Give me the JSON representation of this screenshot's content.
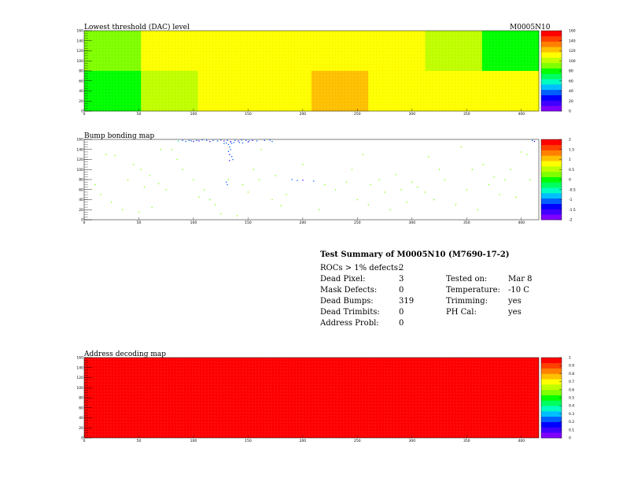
{
  "module_id": "M0005N10",
  "colors": {
    "palette": [
      "#8000ff",
      "#4000ff",
      "#0000ff",
      "#0060ff",
      "#00c0ff",
      "#00ffc0",
      "#00ff60",
      "#00ff00",
      "#80ff00",
      "#c0ff00",
      "#ffff00",
      "#ffc000",
      "#ff8000",
      "#ff4000",
      "#ff0000"
    ]
  },
  "chart_data": [
    {
      "type": "heatmap",
      "title": "Lowest threshold (DAC) level",
      "x_ticks": [
        "0",
        "50",
        "100",
        "150",
        "200",
        "250",
        "300",
        "350",
        "400"
      ],
      "y_ticks": [
        "0",
        "20",
        "40",
        "60",
        "80",
        "100",
        "120",
        "140",
        "160"
      ],
      "xlim": [
        0,
        416
      ],
      "ylim": [
        0,
        160
      ],
      "colorbar_ticks": [
        "0",
        "20",
        "40",
        "60",
        "80",
        "100",
        "120",
        "140",
        "160"
      ],
      "colorbar_range": [
        0,
        160
      ],
      "roc_grid": {
        "cols": 8,
        "rows": 2
      },
      "roc_values_top": [
        95,
        115,
        110,
        110,
        115,
        115,
        105,
        80
      ],
      "roc_values_bottom": [
        80,
        100,
        110,
        115,
        120,
        110,
        115,
        110
      ]
    },
    {
      "type": "scatter",
      "title": "Bump bonding map",
      "x_ticks": [
        "0",
        "50",
        "100",
        "150",
        "200",
        "250",
        "300",
        "350",
        "400"
      ],
      "y_ticks": [
        "0",
        "20",
        "40",
        "60",
        "80",
        "100",
        "120",
        "140",
        "160"
      ],
      "xlim": [
        0,
        416
      ],
      "ylim": [
        0,
        160
      ],
      "colorbar_ticks": [
        "2",
        "1.5",
        "1",
        "0.5",
        "0",
        "-0.5",
        "-1",
        "-1.5",
        "-2"
      ],
      "colorbar_range": [
        -2,
        2
      ],
      "dead_bump_count": 319,
      "points": [
        [
          96,
          158,
          -1
        ],
        [
          98,
          157,
          -1
        ],
        [
          100,
          156,
          -1.5
        ],
        [
          103,
          158,
          -1
        ],
        [
          105,
          157,
          -1.5
        ],
        [
          108,
          159,
          -1
        ],
        [
          112,
          158,
          -1
        ],
        [
          115,
          156,
          -1.5
        ],
        [
          118,
          158,
          -1
        ],
        [
          122,
          157,
          -1
        ],
        [
          125,
          159,
          -1
        ],
        [
          128,
          157,
          -1.5
        ],
        [
          131,
          158,
          -1
        ],
        [
          134,
          156,
          -1
        ],
        [
          138,
          158,
          -1
        ],
        [
          141,
          157,
          -1.5
        ],
        [
          144,
          159,
          -1
        ],
        [
          148,
          158,
          -1
        ],
        [
          151,
          157,
          -1
        ],
        [
          154,
          158,
          -1.5
        ],
        [
          86,
          157,
          -0.5
        ],
        [
          90,
          158,
          -1
        ],
        [
          93,
          156,
          -1
        ],
        [
          132,
          150,
          -1
        ],
        [
          133,
          145,
          -1
        ],
        [
          134,
          140,
          -1
        ],
        [
          132,
          136,
          -1
        ],
        [
          133,
          130,
          -1.5
        ],
        [
          135,
          126,
          -1
        ],
        [
          136,
          120,
          -1
        ],
        [
          133,
          118,
          -1.5
        ],
        [
          134,
          155,
          -2
        ],
        [
          135,
          152,
          -1
        ],
        [
          137,
          154,
          -1
        ],
        [
          130,
          153,
          -1
        ],
        [
          128,
          152,
          -1
        ],
        [
          142,
          154,
          -1
        ],
        [
          145,
          153,
          -1
        ],
        [
          150,
          155,
          -1.5
        ],
        [
          158,
          157,
          -1
        ],
        [
          165,
          158,
          -1
        ],
        [
          170,
          159,
          -1
        ],
        [
          172,
          156,
          -1
        ],
        [
          20,
          130,
          0.3
        ],
        [
          28,
          128,
          0.3
        ],
        [
          45,
          110,
          0.3
        ],
        [
          52,
          100,
          0.3
        ],
        [
          60,
          88,
          0.3
        ],
        [
          68,
          72,
          0.3
        ],
        [
          75,
          60,
          0.3
        ],
        [
          80,
          140,
          0.3
        ],
        [
          85,
          120,
          0.3
        ],
        [
          100,
          80,
          0.3
        ],
        [
          110,
          60,
          0.3
        ],
        [
          115,
          40,
          0.3
        ],
        [
          120,
          30,
          0.3
        ],
        [
          130,
          75,
          -1
        ],
        [
          131,
          70,
          -1
        ],
        [
          132,
          80,
          0.3
        ],
        [
          145,
          70,
          0.3
        ],
        [
          150,
          55,
          0.3
        ],
        [
          160,
          80,
          0.3
        ],
        [
          172,
          40,
          0.3
        ],
        [
          180,
          28,
          0.3
        ],
        [
          190,
          80,
          -1
        ],
        [
          195,
          78,
          -1
        ],
        [
          200,
          79,
          -1.5
        ],
        [
          210,
          77,
          -1
        ],
        [
          220,
          70,
          0.3
        ],
        [
          230,
          60,
          0.3
        ],
        [
          240,
          75,
          0.3
        ],
        [
          250,
          40,
          0.3
        ],
        [
          260,
          30,
          0.3
        ],
        [
          270,
          80,
          0.3
        ],
        [
          280,
          20,
          0.3
        ],
        [
          290,
          60,
          0.3
        ],
        [
          300,
          75,
          0.3
        ],
        [
          305,
          65,
          0.3
        ],
        [
          312,
          55,
          0.3
        ],
        [
          320,
          40,
          0.3
        ],
        [
          330,
          80,
          0.3
        ],
        [
          340,
          30,
          0.3
        ],
        [
          350,
          60,
          0.3
        ],
        [
          360,
          20,
          0.3
        ],
        [
          370,
          70,
          0.3
        ],
        [
          380,
          50,
          0.3
        ],
        [
          385,
          80,
          0.3
        ],
        [
          395,
          45,
          0.3
        ],
        [
          400,
          135,
          0.3
        ],
        [
          405,
          130,
          0.3
        ],
        [
          410,
          158,
          -1
        ],
        [
          412,
          156,
          -1.5
        ],
        [
          408,
          80,
          0.3
        ],
        [
          10,
          70,
          0.3
        ],
        [
          15,
          50,
          0.3
        ],
        [
          25,
          35,
          0.3
        ],
        [
          35,
          20,
          0.3
        ],
        [
          40,
          80,
          0.3
        ],
        [
          50,
          15,
          0.3
        ],
        [
          55,
          65,
          0.3
        ],
        [
          62,
          25,
          0.3
        ],
        [
          70,
          140,
          0.3
        ],
        [
          90,
          100,
          0.3
        ],
        [
          105,
          45,
          0.3
        ],
        [
          125,
          12,
          0.3
        ],
        [
          140,
          8,
          0.3
        ],
        [
          155,
          100,
          0.3
        ],
        [
          162,
          140,
          0.3
        ],
        [
          175,
          88,
          0.3
        ],
        [
          185,
          50,
          0.3
        ],
        [
          200,
          110,
          0.3
        ],
        [
          215,
          20,
          0.3
        ],
        [
          245,
          100,
          0.3
        ],
        [
          255,
          130,
          0.3
        ],
        [
          262,
          70,
          0.3
        ],
        [
          275,
          55,
          0.3
        ],
        [
          285,
          90,
          0.3
        ],
        [
          295,
          35,
          0.3
        ],
        [
          315,
          125,
          0.3
        ],
        [
          325,
          100,
          0.3
        ],
        [
          345,
          145,
          0.3
        ],
        [
          355,
          100,
          0.3
        ],
        [
          365,
          110,
          0.3
        ],
        [
          375,
          85,
          0.3
        ],
        [
          390,
          100,
          0.3
        ]
      ]
    },
    {
      "type": "heatmap",
      "title": "Address decoding map",
      "x_ticks": [
        "0",
        "50",
        "100",
        "150",
        "200",
        "250",
        "300",
        "350",
        "400"
      ],
      "y_ticks": [
        "0",
        "20",
        "40",
        "60",
        "80",
        "100",
        "120",
        "140",
        "160"
      ],
      "xlim": [
        0,
        416
      ],
      "ylim": [
        0,
        160
      ],
      "colorbar_ticks": [
        "1",
        "0.9",
        "0.8",
        "0.7",
        "0.6",
        "0.5",
        "0.4",
        "0.3",
        "0.2",
        "0.1",
        "0"
      ],
      "colorbar_range": [
        0,
        1
      ],
      "uniform_value": 1
    }
  ],
  "summary": {
    "title": "Test Summary of M0005N10 (M7690-17-2)",
    "left": [
      {
        "label": "ROCs > 1% defects:",
        "value": "2"
      },
      {
        "label": "Dead Pixel:",
        "value": "3"
      },
      {
        "label": "Mask Defects:",
        "value": "0"
      },
      {
        "label": "Dead Bumps:",
        "value": "319"
      },
      {
        "label": "Dead Trimbits:",
        "value": "0"
      },
      {
        "label": "Address Probl:",
        "value": "0"
      }
    ],
    "right": [
      {
        "label": "Tested on:",
        "value": "Mar 8"
      },
      {
        "label": "Temperature:",
        "value": "-10 C"
      },
      {
        "label": "Trimming:",
        "value": "yes"
      },
      {
        "label": "PH Cal:",
        "value": "yes"
      }
    ]
  }
}
